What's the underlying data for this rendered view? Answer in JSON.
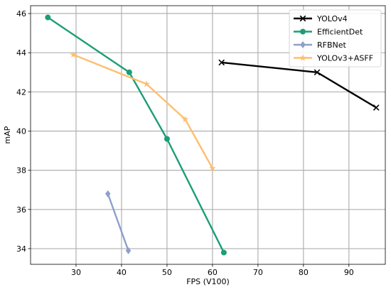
{
  "chart_data": {
    "type": "line",
    "title": "",
    "xlabel": "FPS (V100)",
    "ylabel": "mAP",
    "xlim": [
      20,
      98
    ],
    "ylim": [
      33.2,
      46.4
    ],
    "xticks": [
      30,
      40,
      50,
      60,
      70,
      80,
      90
    ],
    "yticks": [
      34,
      36,
      38,
      40,
      42,
      44,
      46
    ],
    "grid": true,
    "legend_position": "top-right",
    "series": [
      {
        "name": "YOLOv4",
        "color": "#000000",
        "marker": "x",
        "x": [
          62,
          83,
          96
        ],
        "y": [
          43.5,
          43.0,
          41.2
        ]
      },
      {
        "name": "EfficientDet",
        "color": "#1b9e77",
        "marker": "circle",
        "x": [
          23.8,
          41.7,
          50.0,
          62.5
        ],
        "y": [
          45.8,
          43.0,
          39.6,
          33.8
        ]
      },
      {
        "name": "RFBNet",
        "color": "#8da0cb",
        "marker": "diamond",
        "x": [
          37.0,
          41.5
        ],
        "y": [
          36.8,
          33.9
        ]
      },
      {
        "name": "YOLOv3+ASFF",
        "color": "#fdbf6f",
        "marker": "star",
        "x": [
          29.4,
          45.5,
          54.0,
          60.0
        ],
        "y": [
          43.9,
          42.4,
          40.6,
          38.1
        ]
      }
    ]
  }
}
